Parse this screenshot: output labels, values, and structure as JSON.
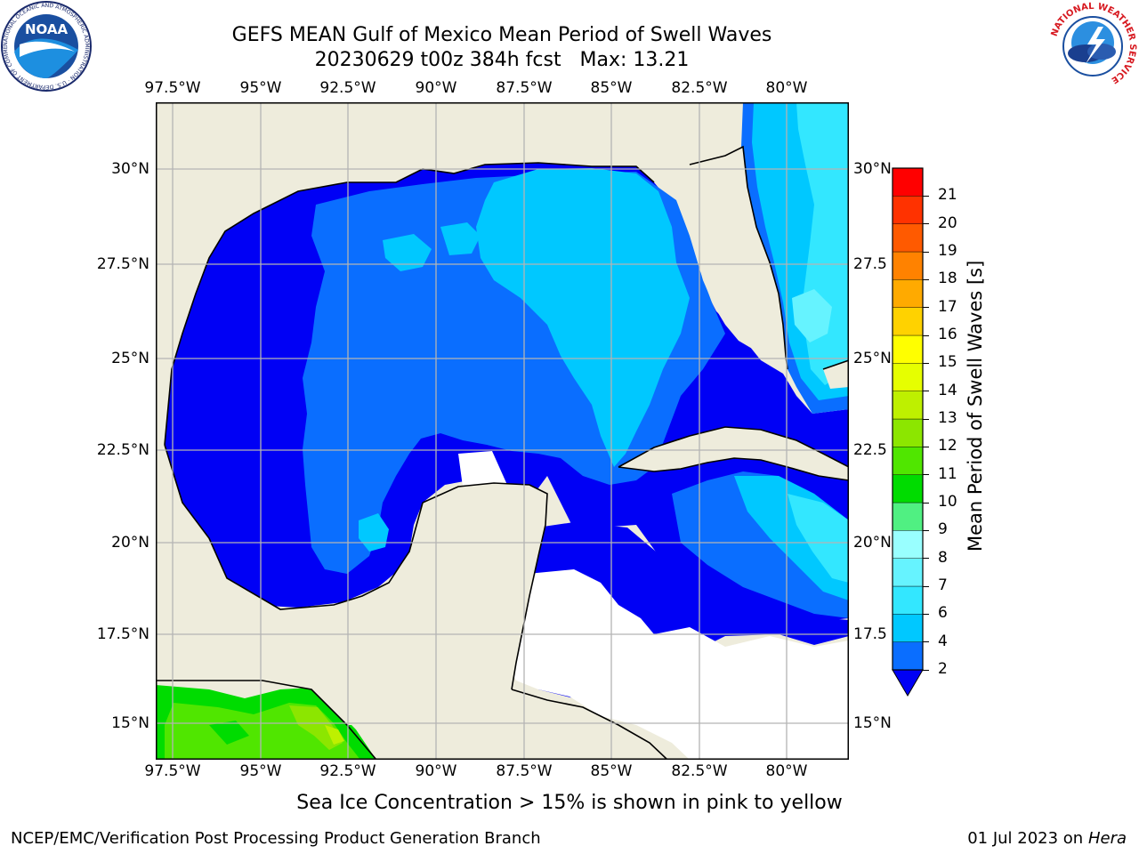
{
  "header": {
    "title_line1": "GEFS MEAN Gulf of Mexico Mean Period of Swell Waves",
    "title_line2": "20230629 t00z 384h fcst   Max: 13.21"
  },
  "logos": {
    "left": {
      "name": "noaa-logo",
      "text": "NOAA",
      "ring_text": "NATIONAL OCEANIC AND ATMOSPHERIC ADMINISTRATION · U.S. DEPARTMENT OF COMMERCE"
    },
    "right": {
      "name": "nws-logo",
      "ring_text": "NATIONAL WEATHER SERVICE"
    }
  },
  "map": {
    "lon_labels": [
      "97.5°W",
      "95°W",
      "92.5°W",
      "90°W",
      "87.5°W",
      "85°W",
      "82.5°W",
      "80°W"
    ],
    "lat_labels_left": [
      "30°N",
      "27.5°N",
      "25°N",
      "22.5°N",
      "20°N",
      "17.5°N",
      "15°N"
    ],
    "lat_labels_right": [
      "30°N",
      "27.5",
      "25°N",
      "22.5",
      "20°N",
      "17.5",
      "15°N"
    ],
    "extent": {
      "lon": [
        -98,
        -79.2
      ],
      "lat": [
        14,
        31.8
      ]
    }
  },
  "colorbar": {
    "label": "Mean Period of Swell Waves [s]",
    "ticks": [
      "2",
      "4",
      "6",
      "7",
      "8",
      "9",
      "10",
      "11",
      "12",
      "13",
      "14",
      "15",
      "16",
      "17",
      "18",
      "19",
      "20",
      "21"
    ],
    "colors": [
      "#0a6eff",
      "#00c8ff",
      "#33e7ff",
      "#66f3ff",
      "#99ffff",
      "#50f082",
      "#00dc00",
      "#50e600",
      "#8ce600",
      "#bef000",
      "#e6ff00",
      "#ffff00",
      "#ffd200",
      "#ffaa00",
      "#ff8200",
      "#ff5a00",
      "#ff3200",
      "#ff0000"
    ],
    "under_color": "#0000f5"
  },
  "palette": {
    "land": "#eeecdc",
    "c_lt2": "#0000f5",
    "c_2_4": "#0a6eff",
    "c_4_6": "#00c8ff",
    "c_6_7": "#33e7ff",
    "c_7_8": "#66f3ff",
    "c_10_11": "#00dc00",
    "c_11_12": "#50e600",
    "c_12_13": "#8ce600",
    "c_13_14": "#bef000",
    "grid": "#b4b4b4"
  },
  "note": "Sea Ice Concentration > 15% is shown in pink to yellow",
  "footer": {
    "left": "NCEP/EMC/Verification Post Processing Product Generation Branch",
    "date": "01 Jul 2023 on",
    "host": "Hera"
  }
}
